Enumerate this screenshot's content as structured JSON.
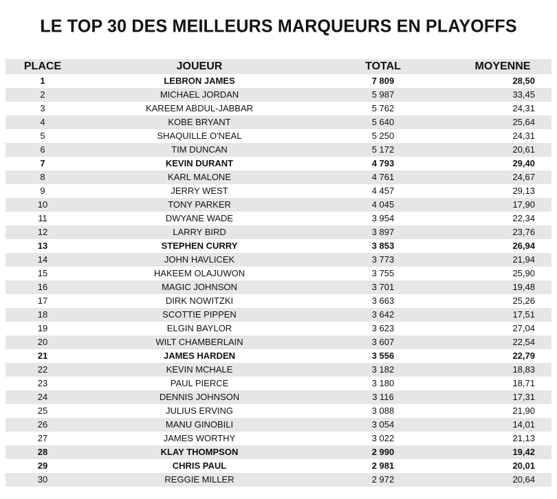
{
  "title": "LE TOP 30 DES MEILLEURS MARQUEURS EN PLAYOFFS",
  "table": {
    "header": [
      "PLACE",
      "JOUEUR",
      "TOTAL",
      "MOYENNE"
    ],
    "rows": [
      {
        "cells": [
          "1",
          "LEBRON JAMES",
          "7 809",
          "28,50"
        ],
        "bold": true
      },
      {
        "cells": [
          "2",
          "MICHAEL JORDAN",
          "5 987",
          "33,45"
        ]
      },
      {
        "cells": [
          "3",
          "KAREEM ABDUL-JABBAR",
          "5 762",
          "24,31"
        ]
      },
      {
        "cells": [
          "4",
          "KOBE BRYANT",
          "5 640",
          "25,64"
        ]
      },
      {
        "cells": [
          "5",
          "SHAQUILLE O'NEAL",
          "5 250",
          "24,31"
        ]
      },
      {
        "cells": [
          "6",
          "TIM DUNCAN",
          "5 172",
          "20,61"
        ]
      },
      {
        "cells": [
          "7",
          "KEVIN DURANT",
          "4 793",
          "29,40"
        ],
        "bold": true
      },
      {
        "cells": [
          "8",
          "KARL MALONE",
          "4 761",
          "24,67"
        ]
      },
      {
        "cells": [
          "9",
          "JERRY WEST",
          "4 457",
          "29,13"
        ]
      },
      {
        "cells": [
          "10",
          "TONY PARKER",
          "4 045",
          "17,90"
        ]
      },
      {
        "cells": [
          "11",
          "DWYANE WADE",
          "3 954",
          "22,34"
        ]
      },
      {
        "cells": [
          "12",
          "LARRY BIRD",
          "3 897",
          "23,76"
        ]
      },
      {
        "cells": [
          "13",
          "STEPHEN CURRY",
          "3 853",
          "26,94"
        ],
        "bold": true
      },
      {
        "cells": [
          "14",
          "JOHN HAVLICEK",
          "3 773",
          "21,94"
        ]
      },
      {
        "cells": [
          "15",
          "HAKEEM OLAJUWON",
          "3 755",
          "25,90"
        ]
      },
      {
        "cells": [
          "16",
          "MAGIC JOHNSON",
          "3 701",
          "19,48"
        ]
      },
      {
        "cells": [
          "17",
          "DIRK NOWITZKI",
          "3 663",
          "25,26"
        ]
      },
      {
        "cells": [
          "18",
          "SCOTTIE PIPPEN",
          "3 642",
          "17,51"
        ]
      },
      {
        "cells": [
          "19",
          "ELGIN BAYLOR",
          "3 623",
          "27,04"
        ]
      },
      {
        "cells": [
          "20",
          "WILT CHAMBERLAIN",
          "3 607",
          "22,54"
        ]
      },
      {
        "cells": [
          "21",
          "JAMES HARDEN",
          "3 556",
          "22,79"
        ],
        "bold": true
      },
      {
        "cells": [
          "22",
          "KEVIN MCHALE",
          "3 182",
          "18,83"
        ]
      },
      {
        "cells": [
          "23",
          "PAUL PIERCE",
          "3 180",
          "18,71"
        ]
      },
      {
        "cells": [
          "24",
          "DENNIS JOHNSON",
          "3 116",
          "17,31"
        ]
      },
      {
        "cells": [
          "25",
          "JULIUS ERVING",
          "3 088",
          "21,90"
        ]
      },
      {
        "cells": [
          "26",
          "MANU GINOBILI",
          "3 054",
          "14,01"
        ]
      },
      {
        "cells": [
          "27",
          "JAMES WORTHY",
          "3 022",
          "21,13"
        ]
      },
      {
        "cells": [
          "28",
          "KLAY THOMPSON",
          "2 990",
          "19,42"
        ],
        "bold": true
      },
      {
        "cells": [
          "29",
          "CHRIS PAUL",
          "2 981",
          "20,01"
        ],
        "bold": true
      },
      {
        "cells": [
          "30",
          "REGGIE MILLER",
          "2 972",
          "20,64"
        ]
      }
    ]
  }
}
